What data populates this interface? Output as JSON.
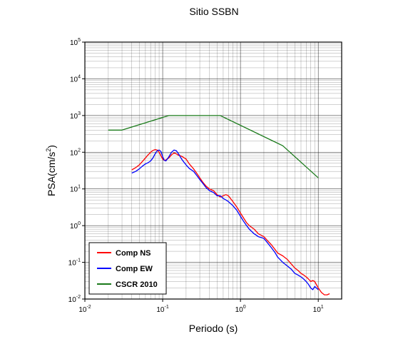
{
  "chart_data": {
    "type": "line",
    "title": "Sitio SSBN",
    "xlabel": "Periodo (s)",
    "ylabel_base": "PSA(cm/s",
    "ylabel_sup": "2",
    "ylabel_close": ")",
    "x_scale": "log",
    "y_scale": "log",
    "xlim": [
      0.01,
      20
    ],
    "ylim": [
      0.01,
      100000
    ],
    "grid": true,
    "legend_position": "bottom-left",
    "x_ticks": [
      {
        "base": "10",
        "exp": "-2",
        "value": 0.01
      },
      {
        "base": "10",
        "exp": "-1",
        "value": 0.1
      },
      {
        "base": "10",
        "exp": "0",
        "value": 1
      },
      {
        "base": "10",
        "exp": "1",
        "value": 10
      }
    ],
    "y_ticks": [
      {
        "base": "10",
        "exp": "-2",
        "value": 0.01
      },
      {
        "base": "10",
        "exp": "-1",
        "value": 0.1
      },
      {
        "base": "10",
        "exp": "0",
        "value": 1
      },
      {
        "base": "10",
        "exp": "1",
        "value": 10
      },
      {
        "base": "10",
        "exp": "2",
        "value": 100
      },
      {
        "base": "10",
        "exp": "3",
        "value": 1000
      },
      {
        "base": "10",
        "exp": "4",
        "value": 10000
      },
      {
        "base": "10",
        "exp": "5",
        "value": 100000
      }
    ],
    "series": [
      {
        "name": "Comp NS",
        "color": "#ff0000",
        "x": [
          0.04,
          0.045,
          0.05,
          0.055,
          0.06,
          0.065,
          0.07,
          0.075,
          0.08,
          0.085,
          0.09,
          0.095,
          0.1,
          0.105,
          0.11,
          0.12,
          0.13,
          0.14,
          0.15,
          0.16,
          0.17,
          0.18,
          0.2,
          0.22,
          0.25,
          0.28,
          0.3,
          0.33,
          0.36,
          0.4,
          0.45,
          0.5,
          0.55,
          0.6,
          0.65,
          0.7,
          0.8,
          0.9,
          1.0,
          1.1,
          1.2,
          1.3,
          1.5,
          1.7,
          2.0,
          2.2,
          2.5,
          2.8,
          3.0,
          3.5,
          4.0,
          4.5,
          5.0,
          5.5,
          6.0,
          6.5,
          7.0,
          7.5,
          8.0,
          8.5,
          9.0,
          10.0,
          11.0,
          12.0,
          13.0,
          14.0
        ],
        "y": [
          33,
          38,
          45,
          56,
          70,
          85,
          100,
          112,
          118,
          115,
          100,
          80,
          65,
          60,
          62,
          70,
          85,
          95,
          90,
          82,
          80,
          75,
          65,
          48,
          35,
          25,
          20,
          15,
          12,
          10,
          9,
          7,
          6,
          6.5,
          7,
          6.5,
          4.5,
          3.2,
          2.2,
          1.6,
          1.2,
          1.0,
          0.8,
          0.6,
          0.5,
          0.4,
          0.3,
          0.22,
          0.18,
          0.15,
          0.12,
          0.09,
          0.07,
          0.06,
          0.05,
          0.045,
          0.04,
          0.035,
          0.03,
          0.032,
          0.03,
          0.02,
          0.015,
          0.013,
          0.013,
          0.014
        ]
      },
      {
        "name": "Comp EW",
        "color": "#0000ff",
        "x": [
          0.04,
          0.045,
          0.05,
          0.055,
          0.06,
          0.065,
          0.07,
          0.075,
          0.08,
          0.085,
          0.09,
          0.095,
          0.1,
          0.105,
          0.11,
          0.12,
          0.13,
          0.14,
          0.15,
          0.16,
          0.17,
          0.18,
          0.2,
          0.22,
          0.25,
          0.28,
          0.3,
          0.33,
          0.36,
          0.4,
          0.45,
          0.5,
          0.55,
          0.6,
          0.65,
          0.7,
          0.8,
          0.9,
          1.0,
          1.1,
          1.2,
          1.3,
          1.5,
          1.7,
          2.0,
          2.2,
          2.5,
          2.8,
          3.0,
          3.5,
          4.0,
          4.5,
          5.0,
          5.5,
          6.0,
          6.5,
          7.0,
          7.5,
          8.0,
          8.5,
          9.0,
          10.0
        ],
        "y": [
          27,
          30,
          35,
          42,
          48,
          52,
          58,
          70,
          90,
          110,
          115,
          105,
          75,
          60,
          58,
          75,
          100,
          115,
          110,
          90,
          72,
          60,
          45,
          36,
          30,
          22,
          18,
          14,
          11,
          9,
          8,
          6.5,
          6.5,
          5.5,
          5,
          4.5,
          3.5,
          2.6,
          1.8,
          1.3,
          1.0,
          0.8,
          0.6,
          0.5,
          0.45,
          0.35,
          0.25,
          0.18,
          0.14,
          0.1,
          0.08,
          0.065,
          0.05,
          0.045,
          0.04,
          0.035,
          0.03,
          0.025,
          0.02,
          0.018,
          0.022,
          0.018
        ]
      },
      {
        "name": "CSCR 2010",
        "color": "#1a7a1a",
        "x": [
          0.02,
          0.03,
          0.12,
          0.55,
          3.5,
          10
        ],
        "y": [
          400,
          400,
          1000,
          1000,
          150,
          20
        ]
      }
    ]
  }
}
